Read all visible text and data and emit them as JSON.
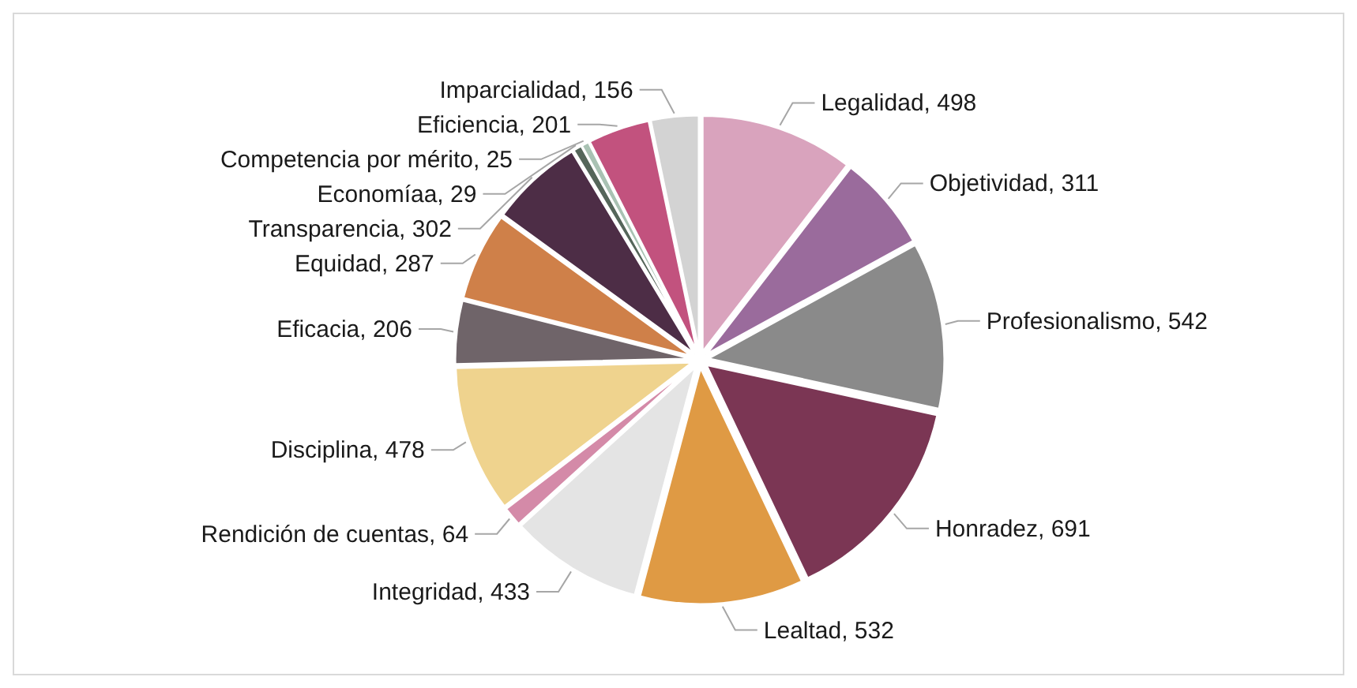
{
  "chart_data": {
    "type": "pie",
    "legend": false,
    "categories": [
      "Legalidad, 498",
      "Objetividad, 311",
      "Profesionalismo, 542",
      "Honradez, 691",
      "Lealtad, 532",
      "Integridad, 433",
      "Rendición de cuentas, 64",
      "Disciplina, 478",
      "Eficacia, 206",
      "Equidad, 287",
      "Transparencia, 302",
      "Economíaa, 29",
      "Competencia por mérito, 25",
      "Eficiencia, 201",
      "Imparcialidad, 156"
    ],
    "values": [
      498,
      311,
      542,
      691,
      532,
      433,
      64,
      478,
      206,
      287,
      302,
      29,
      25,
      201,
      156
    ],
    "colors": [
      "#d9a3bd",
      "#9a6b9c",
      "#8a8a8a",
      "#7b3654",
      "#df9a44",
      "#e4e4e4",
      "#d48aa8",
      "#efd38e",
      "#6f6469",
      "#cf8049",
      "#4d2d46",
      "#55665a",
      "#a9c2b3",
      "#c2527e",
      "#d3d3d3"
    ]
  }
}
